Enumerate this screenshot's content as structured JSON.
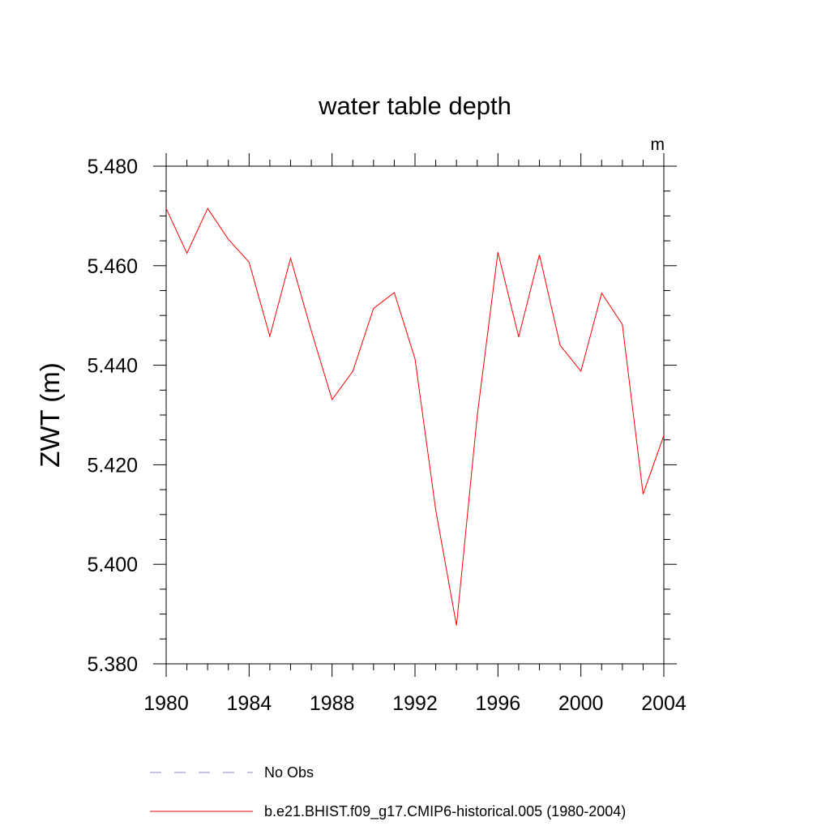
{
  "chart_data": {
    "type": "line",
    "title": "water table depth",
    "units_label": "m",
    "ylabel": "ZWT  (m)",
    "xlabel": "",
    "xlim": [
      1980,
      2004
    ],
    "ylim": [
      5.38,
      5.48
    ],
    "x_ticks": [
      1980,
      1984,
      1988,
      1992,
      1996,
      2000,
      2004
    ],
    "x_tick_labels": [
      "1980",
      "1984",
      "1988",
      "1992",
      "1996",
      "2000",
      "2004"
    ],
    "y_ticks": [
      5.38,
      5.4,
      5.42,
      5.44,
      5.46,
      5.48
    ],
    "y_tick_labels": [
      "5.380",
      "5.400",
      "5.420",
      "5.440",
      "5.460",
      "5.480"
    ],
    "grid": false,
    "legend_position": "bottom",
    "series": [
      {
        "name": "b.e21.BHIST.f09_g17.CMIP6-historical.005 (1980-2004)",
        "color": "#ff0000",
        "dash": "solid",
        "x": [
          1980,
          1981,
          1982,
          1983,
          1984,
          1985,
          1986,
          1987,
          1988,
          1989,
          1990,
          1991,
          1992,
          1993,
          1994,
          1995,
          1996,
          1997,
          1998,
          1999,
          2000,
          2001,
          2002,
          2003,
          2004
        ],
        "y": [
          5.4715,
          5.4625,
          5.4715,
          5.4653,
          5.4607,
          5.4458,
          5.4615,
          5.4469,
          5.4331,
          5.4388,
          5.4514,
          5.4546,
          5.4413,
          5.4109,
          5.3877,
          5.4299,
          5.4627,
          5.4457,
          5.4622,
          5.444,
          5.4388,
          5.4545,
          5.4482,
          5.4141,
          5.4259
        ]
      }
    ],
    "legend": [
      {
        "label": "No Obs",
        "color": "#8888cc",
        "dash": "dashed"
      },
      {
        "label": "b.e21.BHIST.f09_g17.CMIP6-historical.005 (1980-2004)",
        "color": "#ff0000",
        "dash": "solid"
      }
    ]
  }
}
